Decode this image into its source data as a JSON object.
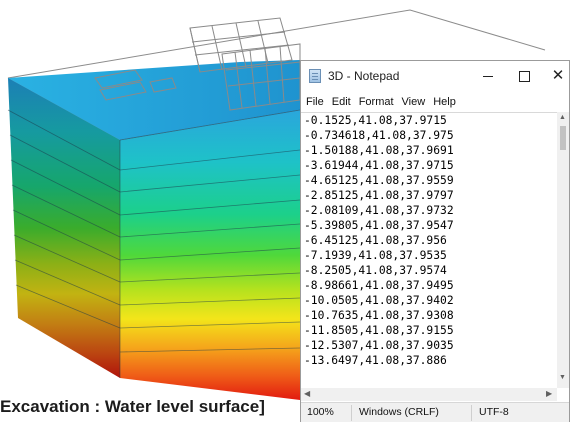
{
  "caption": "Excavation : Water level surface]",
  "notepad": {
    "title": "3D - Notepad",
    "window_buttons": {
      "minimize": "",
      "maximize": "",
      "close": "✕"
    },
    "menu": [
      "File",
      "Edit",
      "Format",
      "View",
      "Help"
    ],
    "lines": [
      "-0.1525,41.08,37.9715",
      "-0.734618,41.08,37.975",
      "-1.50188,41.08,37.9691",
      "-3.61944,41.08,37.9715",
      "-4.65125,41.08,37.9559",
      "-2.85125,41.08,37.9797",
      "-2.08109,41.08,37.9732",
      "-5.39805,41.08,37.9547",
      "-6.45125,41.08,37.956",
      "-7.1939,41.08,37.9535",
      "-8.2505,41.08,37.9574",
      "-8.98661,41.08,37.9495",
      "-10.0505,41.08,37.9402",
      "-10.7635,41.08,37.9308",
      "-11.8505,41.08,37.9155",
      "-12.5307,41.08,37.9035",
      "-13.6497,41.08,37.886"
    ],
    "status": {
      "zoom": "100%",
      "line_ending": "Windows (CRLF)",
      "encoding": "UTF-8"
    }
  },
  "colors": {
    "model_top_face": "#2aa6dc",
    "model_bottom": "#e21a10",
    "window_border": "#9b9b9b",
    "statusbar_bg": "#f0f0f0"
  }
}
